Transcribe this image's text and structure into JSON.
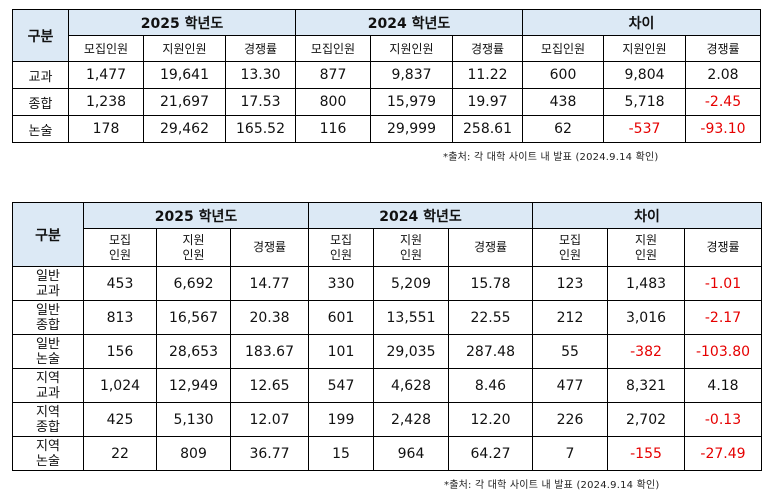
{
  "table1": {
    "corner": "구분",
    "years": [
      "2025 학년도",
      "2024 학년도",
      "차이"
    ],
    "subheaders": [
      "모집인원",
      "지원인원",
      "경쟁률"
    ],
    "rows": [
      {
        "label": "교과",
        "cells": [
          "1,477",
          "19,641",
          "13.30",
          "877",
          "9,837",
          "11.22",
          "600",
          "9,804",
          "2.08"
        ]
      },
      {
        "label": "종합",
        "cells": [
          "1,238",
          "21,697",
          "17.53",
          "800",
          "15,979",
          "19.97",
          "438",
          "5,718",
          "-2.45"
        ]
      },
      {
        "label": "논술",
        "cells": [
          "178",
          "29,462",
          "165.52",
          "116",
          "29,999",
          "258.61",
          "62",
          "-537",
          "-93.10"
        ]
      }
    ],
    "note": "*출처: 각 대학 사이트 내 발표 (2024.9.14 확인)"
  },
  "table2": {
    "corner": "구분",
    "years": [
      "2025 학년도",
      "2024 학년도",
      "차이"
    ],
    "subheaders": [
      {
        "line1": "모집",
        "line2": "인원"
      },
      {
        "line1": "지원",
        "line2": "인원"
      },
      {
        "line1": "경쟁률",
        "line2": ""
      }
    ],
    "rows": [
      {
        "label1": "일반",
        "label2": "교과",
        "cells": [
          "453",
          "6,692",
          "14.77",
          "330",
          "5,209",
          "15.78",
          "123",
          "1,483",
          "-1.01"
        ]
      },
      {
        "label1": "일반",
        "label2": "종합",
        "cells": [
          "813",
          "16,567",
          "20.38",
          "601",
          "13,551",
          "22.55",
          "212",
          "3,016",
          "-2.17"
        ]
      },
      {
        "label1": "일반",
        "label2": "논술",
        "cells": [
          "156",
          "28,653",
          "183.67",
          "101",
          "29,035",
          "287.48",
          "55",
          "-382",
          "-103.80"
        ]
      },
      {
        "label1": "지역",
        "label2": "교과",
        "cells": [
          "1,024",
          "12,949",
          "12.65",
          "547",
          "4,628",
          "8.46",
          "477",
          "8,321",
          "4.18"
        ]
      },
      {
        "label1": "지역",
        "label2": "종합",
        "cells": [
          "425",
          "5,130",
          "12.07",
          "199",
          "2,428",
          "12.20",
          "226",
          "2,702",
          "-0.13"
        ]
      },
      {
        "label1": "지역",
        "label2": "논술",
        "cells": [
          "22",
          "809",
          "36.77",
          "15",
          "964",
          "64.27",
          "7",
          "-155",
          "-27.49"
        ]
      }
    ],
    "note": "*출처: 각 대학 사이트 내 발표 (2024.9.14 확인)"
  },
  "colors": {
    "header_bg": "#dce9f5",
    "negative": "#e60000"
  }
}
